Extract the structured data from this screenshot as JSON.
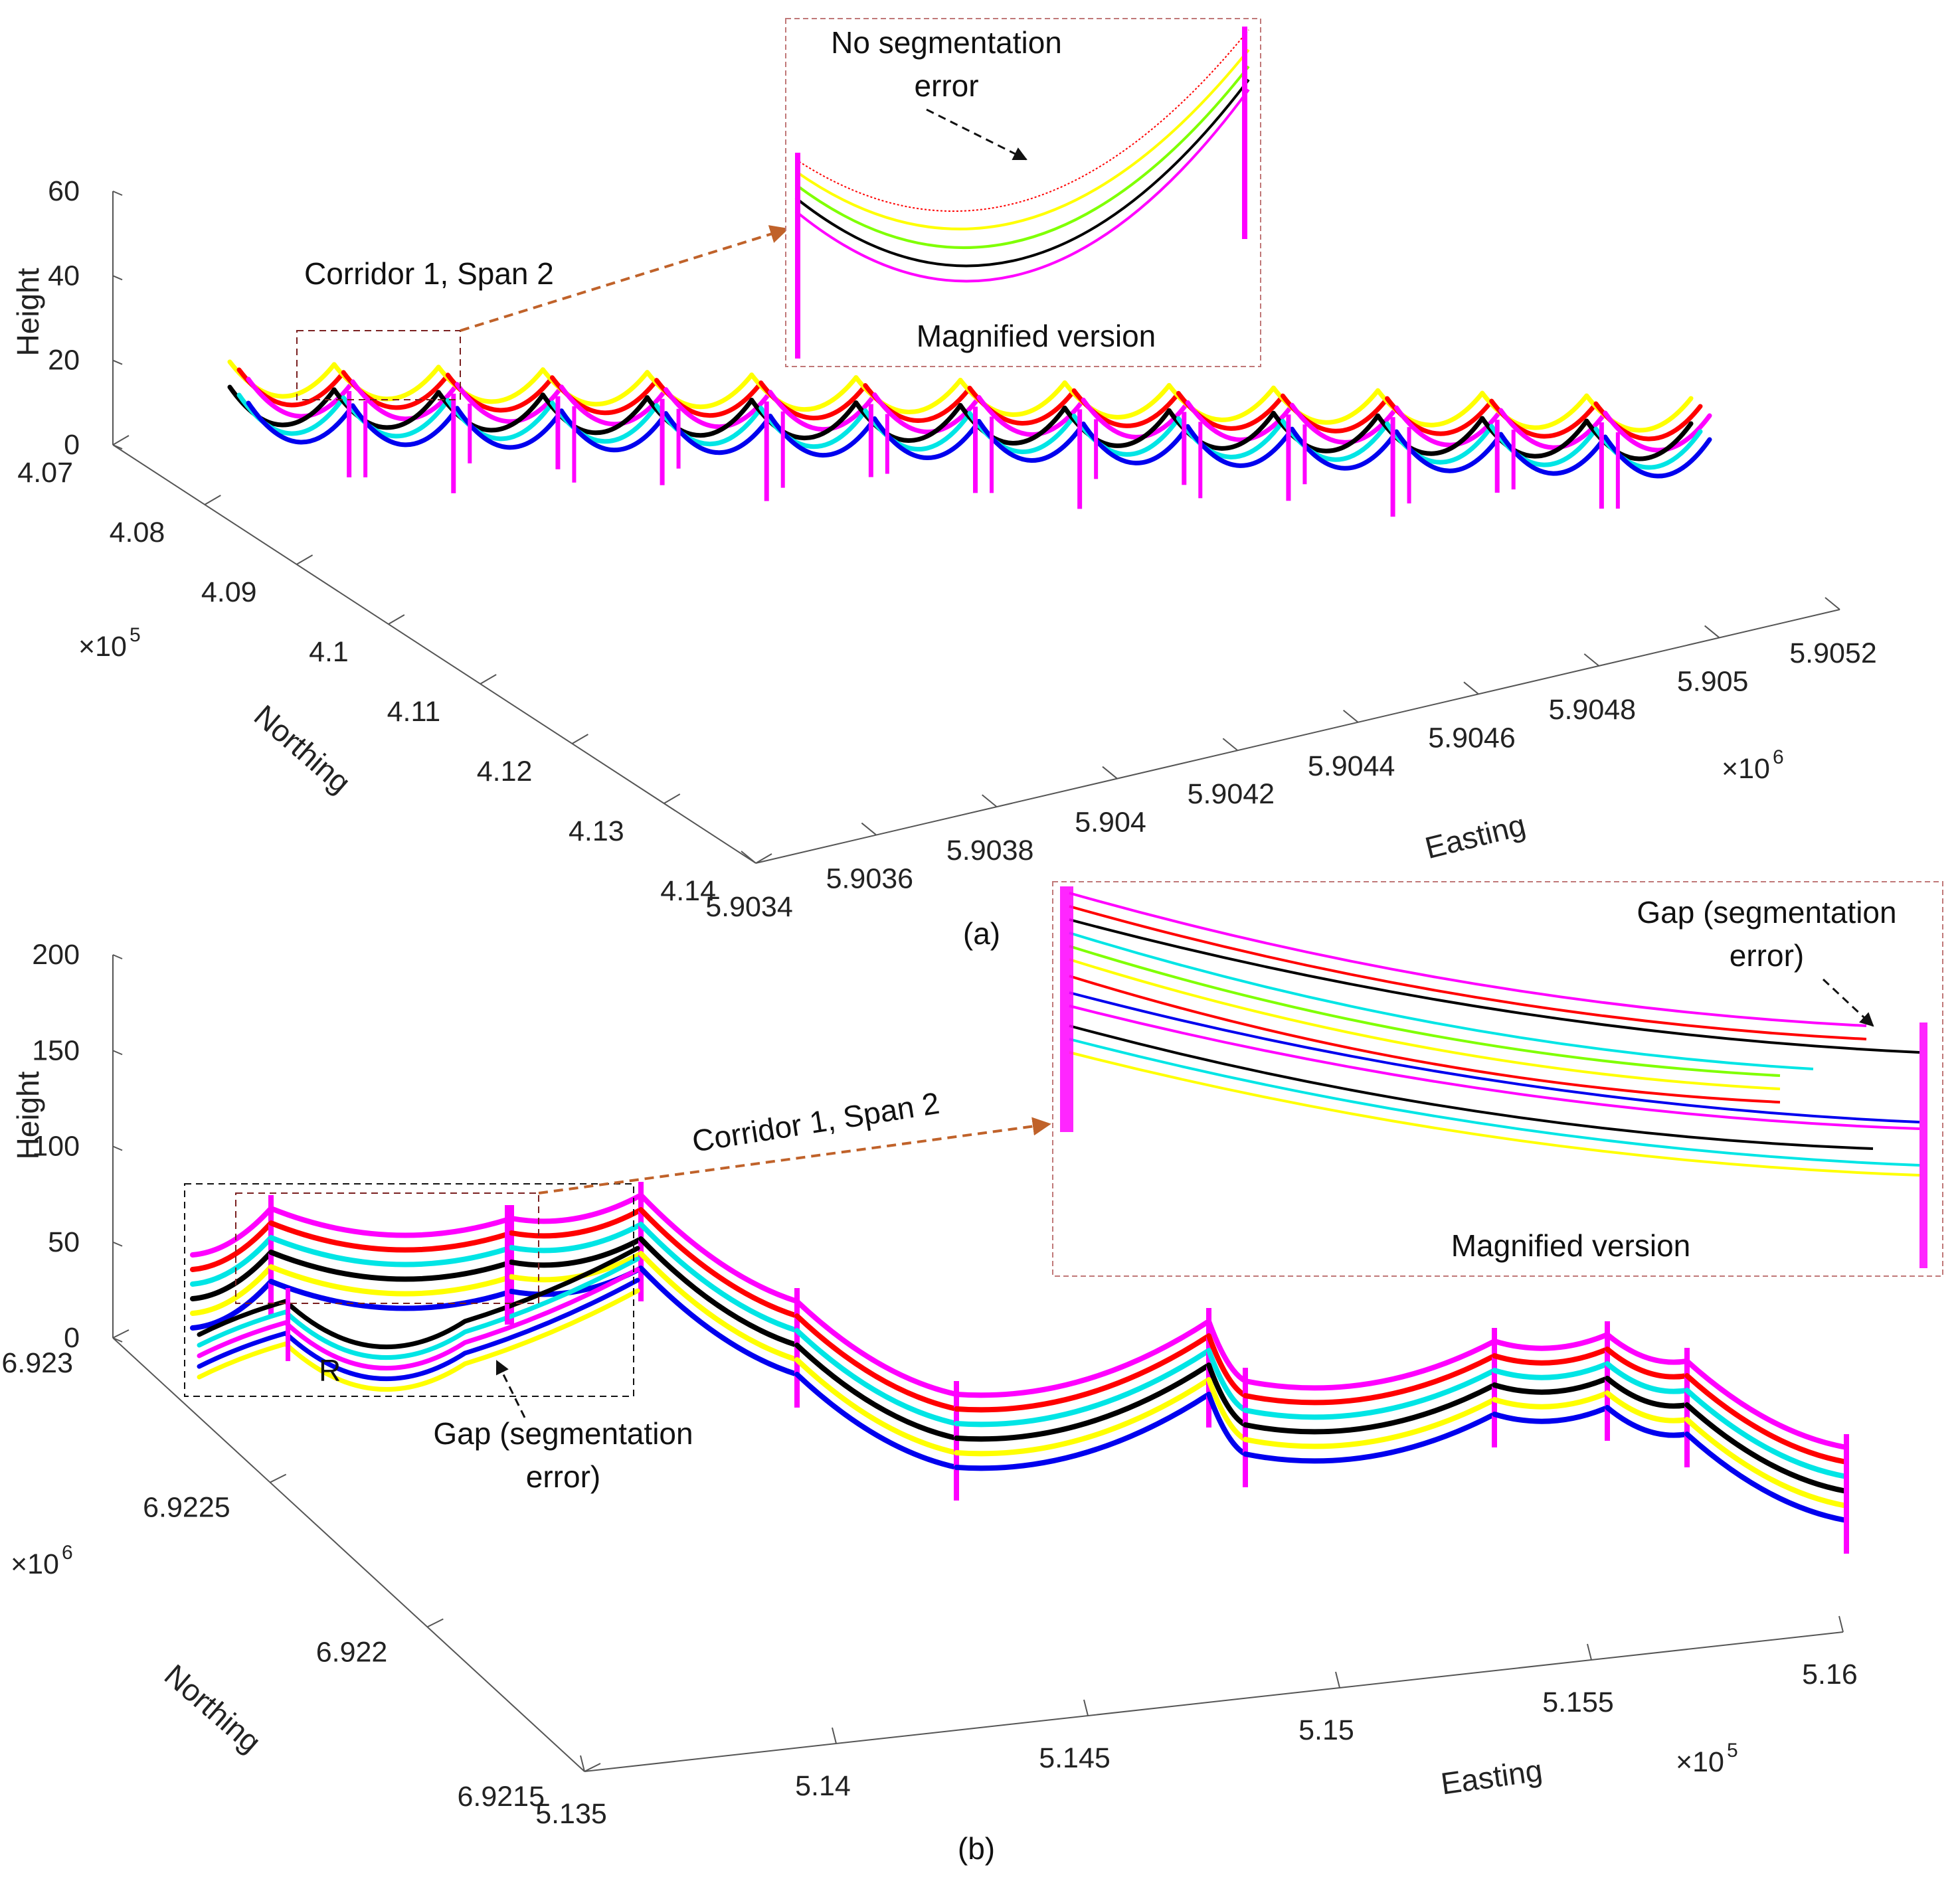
{
  "figure": {
    "panel_labels": [
      "(a)",
      "(b)"
    ]
  },
  "colors": {
    "magenta": "#ff00ff",
    "red": "#ff0000",
    "yellow": "#ffff00",
    "blue": "#0000ee",
    "black": "#000000",
    "cyan": "#00e5e5",
    "green": "#7fff00",
    "annotation_arrow": "#c0622a",
    "inset_border": "#c07878"
  },
  "chart_data": [
    {
      "type": "scatter",
      "subtype": "3d-point-cloud",
      "panel": "(a)",
      "zlabel": "Height",
      "ylabel": "Northing",
      "xlabel": "Easting",
      "z_ticks": [
        "0",
        "20",
        "40",
        "60"
      ],
      "zlim": [
        0,
        60
      ],
      "northing_ticks": [
        "4.07",
        "4.08",
        "4.09",
        "4.1",
        "4.11",
        "4.12",
        "4.13",
        "4.14"
      ],
      "northing_multiplier": "×10",
      "northing_exponent": "5",
      "easting_ticks": [
        "5.9034",
        "5.9036",
        "5.9038",
        "5.904",
        "5.9042",
        "5.9044",
        "5.9046",
        "5.9048",
        "5.905",
        "5.9052"
      ],
      "easting_multiplier": "×10",
      "easting_exponent": "6",
      "series_colors": [
        "magenta",
        "red",
        "yellow",
        "blue",
        "black",
        "cyan"
      ],
      "spans": 14,
      "annotations": {
        "corridor_label": "Corridor 1, Span 2",
        "inset_title_line1": "No segmentation",
        "inset_title_line2": "error",
        "inset_caption": "Magnified version"
      }
    },
    {
      "type": "scatter",
      "subtype": "3d-point-cloud",
      "panel": "(b)",
      "zlabel": "Height",
      "ylabel": "Northing",
      "xlabel": "Easting",
      "z_ticks": [
        "0",
        "50",
        "100",
        "150",
        "200"
      ],
      "zlim": [
        0,
        200
      ],
      "northing_ticks": [
        "6.923",
        "6.9225",
        "6.922",
        "6.9215"
      ],
      "northing_multiplier": "×10",
      "northing_exponent": "6",
      "easting_ticks": [
        "5.135",
        "5.14",
        "5.145",
        "5.15",
        "5.155",
        "5.16"
      ],
      "easting_multiplier": "×10",
      "easting_exponent": "5",
      "series_colors": [
        "magenta",
        "red",
        "yellow",
        "blue",
        "black",
        "cyan"
      ],
      "annotations": {
        "corridor_label": "Corridor 1, Span 2",
        "region_label": "R",
        "gap_label_line1": "Gap (segmentation",
        "gap_label_line2": "error)",
        "inset_gap_line1": "Gap (segmentation",
        "inset_gap_line2": "error)",
        "inset_caption": "Magnified version"
      }
    }
  ]
}
